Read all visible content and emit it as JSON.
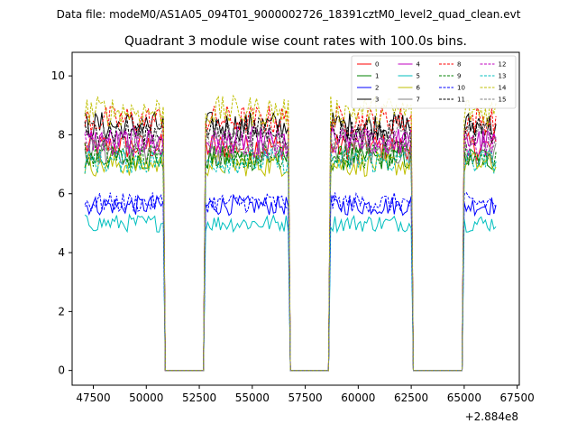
{
  "figure": {
    "suptitle": "Data file: modeM0/AS1A05_094T01_9000002726_18391cztM0_level2_quad_clean.evt",
    "x_offset_label": "+2.884e8"
  },
  "chart_data": {
    "type": "line",
    "title": "Quadrant 3 module wise count rates with 100.0s bins.",
    "xlabel": "",
    "ylabel": "",
    "xlim": [
      46500,
      67600
    ],
    "ylim": [
      -0.5,
      10.8
    ],
    "x_ticks": [
      47500,
      50000,
      52500,
      55000,
      57500,
      60000,
      62500,
      65000,
      67500
    ],
    "x_tick_labels": [
      "47500",
      "50000",
      "52500",
      "55000",
      "57500",
      "60000",
      "62500",
      "65000",
      "67500"
    ],
    "y_ticks": [
      0,
      2,
      4,
      6,
      8,
      10
    ],
    "y_tick_labels": [
      "0",
      "2",
      "4",
      "6",
      "8",
      "10"
    ],
    "x_offset": 288400000,
    "bin_size_s": 100,
    "active_intervals": [
      [
        47100,
        50800
      ],
      [
        52800,
        56700
      ],
      [
        58700,
        62500
      ],
      [
        65000,
        66500
      ]
    ],
    "dropout_level": 0.0,
    "legend": {
      "placement": "top-right",
      "columns": 4
    },
    "series": [
      {
        "name": "0",
        "color": "#ff0000",
        "linestyle": "solid",
        "mean_rate": 7.6
      },
      {
        "name": "1",
        "color": "#008000",
        "linestyle": "solid",
        "mean_rate": 7.2
      },
      {
        "name": "2",
        "color": "#0000ff",
        "linestyle": "solid",
        "mean_rate": 5.6
      },
      {
        "name": "3",
        "color": "#000000",
        "linestyle": "solid",
        "mean_rate": 8.3
      },
      {
        "name": "4",
        "color": "#c000c0",
        "linestyle": "solid",
        "mean_rate": 7.8
      },
      {
        "name": "5",
        "color": "#00bfbf",
        "linestyle": "solid",
        "mean_rate": 5.0
      },
      {
        "name": "6",
        "color": "#bfbf00",
        "linestyle": "solid",
        "mean_rate": 7.0
      },
      {
        "name": "7",
        "color": "#808080",
        "linestyle": "solid",
        "mean_rate": 7.4
      },
      {
        "name": "8",
        "color": "#ff0000",
        "linestyle": "dashed",
        "mean_rate": 8.5
      },
      {
        "name": "9",
        "color": "#008000",
        "linestyle": "dashed",
        "mean_rate": 7.3
      },
      {
        "name": "10",
        "color": "#0000ff",
        "linestyle": "dashed",
        "mean_rate": 5.7
      },
      {
        "name": "11",
        "color": "#000000",
        "linestyle": "dashed",
        "mean_rate": 8.1
      },
      {
        "name": "12",
        "color": "#c000c0",
        "linestyle": "dashed",
        "mean_rate": 7.7
      },
      {
        "name": "13",
        "color": "#00bfbf",
        "linestyle": "dashed",
        "mean_rate": 7.1
      },
      {
        "name": "14",
        "color": "#bfbf00",
        "linestyle": "dashed",
        "mean_rate": 8.8
      },
      {
        "name": "15",
        "color": "#808080",
        "linestyle": "dashed",
        "mean_rate": 7.9
      }
    ]
  }
}
